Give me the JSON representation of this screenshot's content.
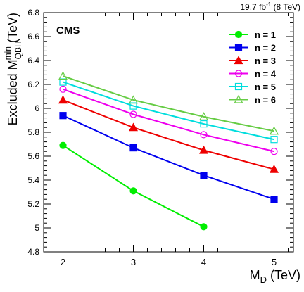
{
  "chart_data": {
    "type": "line",
    "header": "19.7 fb⁻¹ (8 TeV)",
    "experiment": "CMS",
    "xlabel": "M_D (TeV)",
    "ylabel": "Excluded M_QBH^min (TeV)",
    "xlim": [
      1.725,
      5.275
    ],
    "ylim": [
      4.8,
      6.8
    ],
    "xticks": [
      "2",
      "3",
      "4",
      "5"
    ],
    "yticks": [
      "4.8",
      "5",
      "5.2",
      "5.4",
      "5.6",
      "5.8",
      "6",
      "6.2",
      "6.4",
      "6.6",
      "6.8"
    ],
    "legend_position": "top-right",
    "series": [
      {
        "name": "n = 1",
        "color": "#00ee00",
        "marker": "circle-filled",
        "x": [
          2,
          3,
          4
        ],
        "y": [
          5.69,
          5.31,
          5.01
        ]
      },
      {
        "name": "n = 2",
        "color": "#0000ee",
        "marker": "square-filled",
        "x": [
          2,
          3,
          4,
          5
        ],
        "y": [
          5.94,
          5.67,
          5.44,
          5.24
        ]
      },
      {
        "name": "n = 3",
        "color": "#ee0000",
        "marker": "triangle-filled",
        "x": [
          2,
          3,
          4,
          5
        ],
        "y": [
          6.07,
          5.84,
          5.65,
          5.49
        ]
      },
      {
        "name": "n = 4",
        "color": "#ee00ee",
        "marker": "circle-open",
        "x": [
          2,
          3,
          4,
          5
        ],
        "y": [
          6.16,
          5.95,
          5.78,
          5.64
        ]
      },
      {
        "name": "n = 5",
        "color": "#00dddd",
        "marker": "square-open",
        "x": [
          2,
          3,
          4,
          5
        ],
        "y": [
          6.22,
          6.02,
          5.87,
          5.74
        ]
      },
      {
        "name": "n = 6",
        "color": "#66cc44",
        "marker": "triangle-open",
        "x": [
          2,
          3,
          4,
          5
        ],
        "y": [
          6.27,
          6.07,
          5.93,
          5.81
        ]
      }
    ]
  }
}
